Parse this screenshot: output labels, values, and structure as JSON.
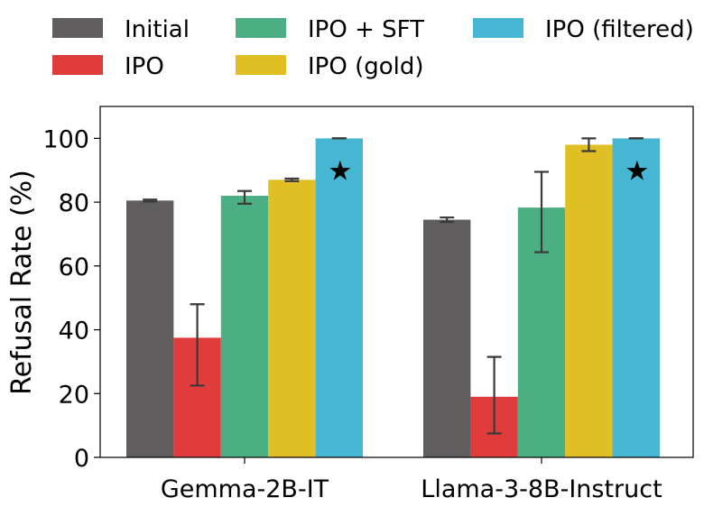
{
  "chart_data": {
    "type": "bar",
    "title": "",
    "xlabel": "",
    "ylabel": "Refusal Rate (%)",
    "ylim": [
      0,
      110
    ],
    "yticks": [
      0,
      20,
      40,
      60,
      80,
      100
    ],
    "categories": [
      "Gemma-2B-IT",
      "Llama-3-8B-Instruct"
    ],
    "series": [
      {
        "name": "Initial",
        "color": "#5f5d5d",
        "values": [
          80.5,
          74.5
        ],
        "err_low": [
          80.2,
          73.8
        ],
        "err_high": [
          80.8,
          75.2
        ],
        "star": false
      },
      {
        "name": "IPO",
        "color": "#e03c3c",
        "values": [
          37.5,
          19.0
        ],
        "err_low": [
          22.5,
          7.5
        ],
        "err_high": [
          48.0,
          31.5
        ],
        "star": false
      },
      {
        "name": "IPO + SFT",
        "color": "#4caf84",
        "values": [
          82.0,
          78.3
        ],
        "err_low": [
          79.5,
          64.3
        ],
        "err_high": [
          83.5,
          89.5
        ],
        "star": false
      },
      {
        "name": "IPO (gold)",
        "color": "#e0bf24",
        "values": [
          87.0,
          98.0
        ],
        "err_low": [
          86.6,
          96.0
        ],
        "err_high": [
          87.4,
          100.0
        ],
        "star": false
      },
      {
        "name": "IPO (filtered)",
        "color": "#47b6d3",
        "values": [
          100.0,
          100.0
        ],
        "err_low": [
          100.0,
          100.0
        ],
        "err_high": [
          100.0,
          100.0
        ],
        "star": true
      }
    ],
    "star_symbol": "★",
    "legend_position": "top",
    "grid": false
  }
}
